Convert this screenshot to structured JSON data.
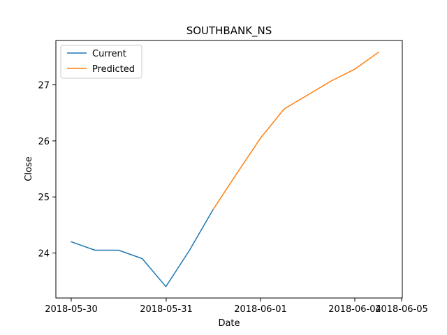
{
  "chart_data": {
    "type": "line",
    "title": "SOUTHBANK_NS",
    "xlabel": "Date",
    "ylabel": "Close",
    "x_tick_labels": [
      "2018-05-30",
      "2018-05-31",
      "2018-06-01",
      "2018-06-04",
      "2018-06-05"
    ],
    "y_ticks": [
      24,
      25,
      26,
      27
    ],
    "ylim": [
      23.2,
      27.8
    ],
    "legend_position": "top-left",
    "grid": false,
    "series": [
      {
        "name": "Current",
        "color": "#1f77b4",
        "x": [
          0,
          0.25,
          0.5,
          0.75,
          1.0,
          1.25,
          1.5
        ],
        "y": [
          24.2,
          24.05,
          24.05,
          23.9,
          23.4,
          24.05,
          24.78
        ]
      },
      {
        "name": "Predicted",
        "color": "#ff7f0e",
        "x": [
          1.5,
          1.75,
          2.0,
          2.25,
          2.5,
          2.75,
          3.0,
          3.25
        ],
        "y": [
          24.78,
          25.42,
          26.05,
          26.57,
          26.82,
          27.07,
          27.28,
          27.58
        ]
      }
    ]
  }
}
